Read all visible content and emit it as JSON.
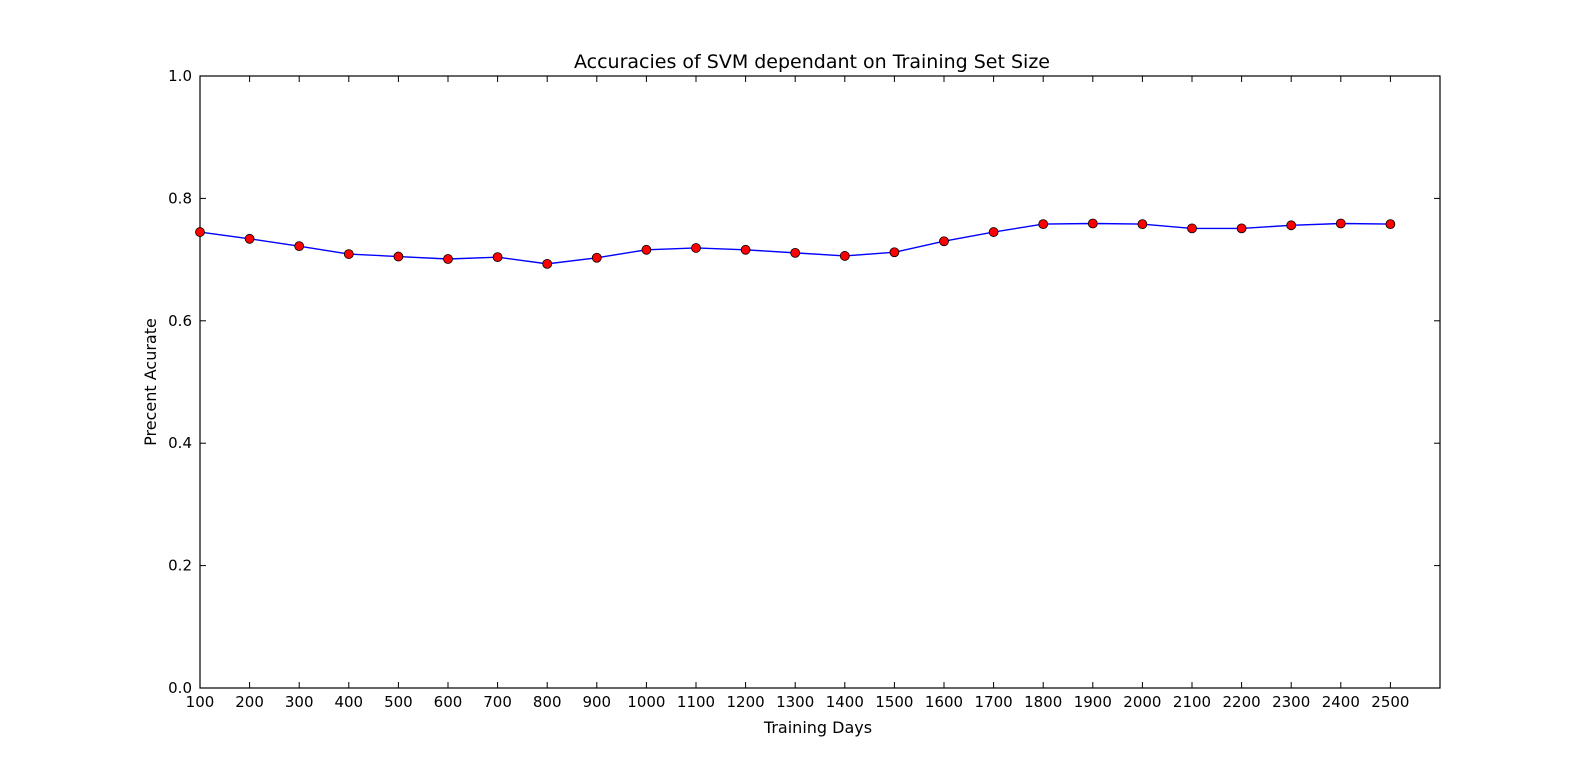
{
  "chart_data": {
    "type": "line",
    "title": "Accuracies of SVM dependant on Training Set Size",
    "xlabel": "Training Days",
    "ylabel": "Precent Acurate",
    "x": [
      100,
      200,
      300,
      400,
      500,
      600,
      700,
      800,
      900,
      1000,
      1100,
      1200,
      1300,
      1400,
      1500,
      1600,
      1700,
      1800,
      1900,
      2000,
      2100,
      2200,
      2300,
      2400,
      2500
    ],
    "series": [
      {
        "name": "",
        "values": [
          0.745,
          0.734,
          0.722,
          0.709,
          0.705,
          0.701,
          0.704,
          0.693,
          0.703,
          0.716,
          0.719,
          0.716,
          0.711,
          0.706,
          0.712,
          0.73,
          0.745,
          0.758,
          0.759,
          0.758,
          0.751,
          0.751,
          0.756,
          0.759,
          0.758
        ],
        "line_color": "#0000ff",
        "marker_color": "#ff0000"
      }
    ],
    "xlim": [
      100,
      2600
    ],
    "ylim": [
      0.0,
      1.0
    ],
    "xticks": [
      100,
      200,
      300,
      400,
      500,
      600,
      700,
      800,
      900,
      1000,
      1100,
      1200,
      1300,
      1400,
      1500,
      1600,
      1700,
      1800,
      1900,
      2000,
      2100,
      2200,
      2300,
      2400,
      2500
    ],
    "yticks": [
      "0.0",
      "0.2",
      "0.4",
      "0.6",
      "0.8",
      "1.0"
    ],
    "grid": false,
    "legend": false
  }
}
